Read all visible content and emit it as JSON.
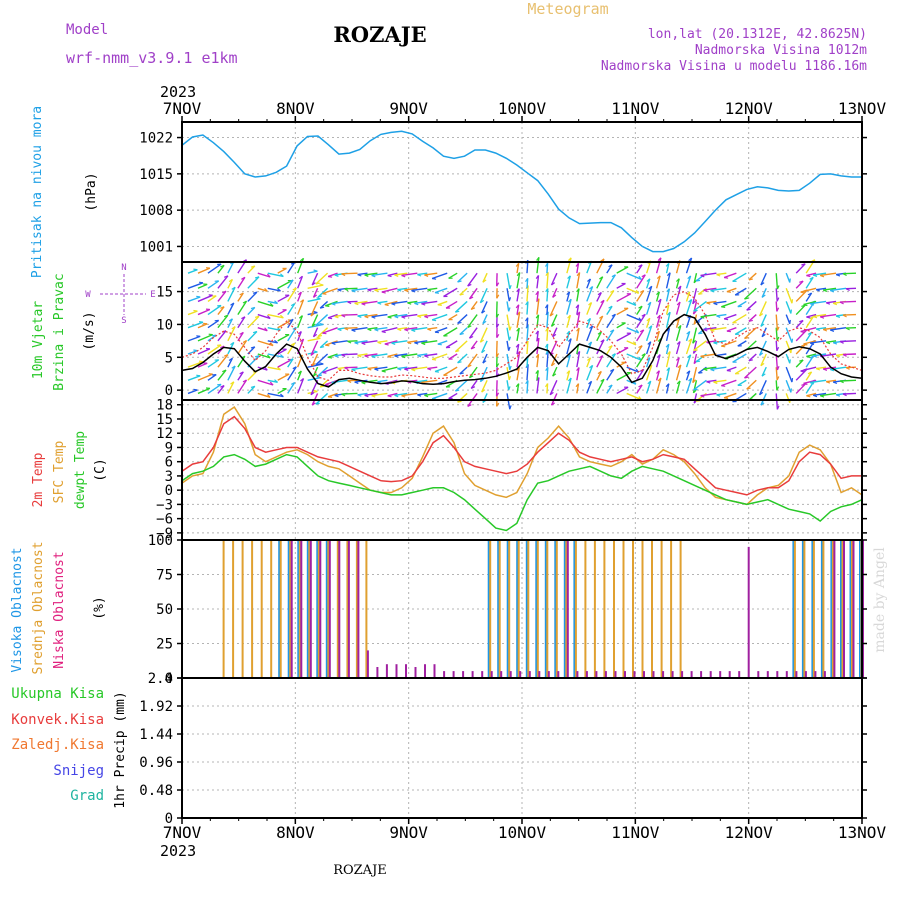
{
  "header": {
    "model_label": "Model",
    "model_name": "wrf-nmm_v3.9.1 e1km",
    "station": "ROZAJE",
    "meteogram": "Meteogram",
    "lonlat": "lon,lat (20.1312E, 42.8625N)",
    "altitude": "Nadmorska Visina 1012m",
    "model_altitude": "Nadmorska Visina u modelu 1186.16m",
    "year": "2023",
    "footer_station": "ROZAJE",
    "credit": "made by Angel"
  },
  "colors": {
    "pressure": "#1ea0e6",
    "temp2m": "#e83c3c",
    "sfc": "#e0a030",
    "dewpt": "#28c828",
    "high_cloud": "#1e96e6",
    "mid_cloud": "#e0a030",
    "low_cloud": "#a020a0",
    "total_precip": "#28c828",
    "convective": "#e83c3c",
    "frozen": "#f07830",
    "snow": "#4646e6",
    "graupel": "#20b4a0",
    "wind_speed": "#000000",
    "gust": "#e83c3c"
  },
  "axis_labels": {
    "pressure": [
      "Pritisak na nivou mora",
      "(hPa)"
    ],
    "wind": [
      "10m Vjetar",
      "Brzina i Pravac",
      "(m/s)"
    ],
    "compass": [
      "N",
      "W",
      "E",
      "S"
    ],
    "temp": [
      "2m Temp",
      "SFC Temp",
      "dewpt Temp",
      "(C)"
    ],
    "cloud": [
      "Visoka Oblacnost",
      "Srednja Oblacnost",
      "Niska Oblacnost",
      "(%)"
    ],
    "precip_legend": [
      "Ukupna Kisa",
      "Konvek.Kisa",
      "Zaledj.Kisa",
      "Snijeg",
      "Grad"
    ],
    "precip_unit": "1hr Precip (mm)"
  },
  "chart_data": [
    {
      "type": "line",
      "panel": "pressure",
      "x_ticks": [
        "7NOV",
        "8NOV",
        "9NOV",
        "10NOV",
        "11NOV",
        "12NOV",
        "13NOV"
      ],
      "y_ticks": [
        "1022",
        "1015",
        "1008",
        "1001"
      ],
      "ylim": [
        998,
        1025
      ],
      "series": [
        {
          "values": [
            1020.5,
            1022.1,
            1022.5,
            1021.0,
            1019.3,
            1017.2,
            1015.0,
            1014.4,
            1014.6,
            1015.3,
            1016.5,
            1020.4,
            1022.2,
            1022.3,
            1020.6,
            1018.8,
            1019.0,
            1019.7,
            1021.4,
            1022.6,
            1023.0,
            1023.2,
            1022.7,
            1021.3,
            1020.0,
            1018.4,
            1018.0,
            1018.4,
            1019.6,
            1019.6,
            1019.0,
            1018.0,
            1016.7,
            1015.2,
            1013.7,
            1011.1,
            1008.2,
            1006.5,
            1005.4,
            1005.5,
            1005.6,
            1005.6,
            1004.6,
            1002.7,
            1001.0,
            1000.0,
            1000.0,
            1000.6,
            1001.9,
            1003.6,
            1005.8,
            1008.0,
            1010.0,
            1011.0,
            1012.0,
            1012.5,
            1012.3,
            1011.8,
            1011.7,
            1011.8,
            1013.2,
            1014.9,
            1015.0,
            1014.6,
            1014.4,
            1014.4
          ]
        }
      ]
    },
    {
      "type": "line",
      "panel": "wind",
      "y_ticks": [
        "15",
        "10",
        "5",
        "0"
      ],
      "ylim": [
        -1.5,
        19.5
      ],
      "series": [
        {
          "values": [
            3.0,
            3.3,
            4.2,
            5.5,
            6.5,
            6.3,
            4.4,
            2.8,
            3.6,
            5.5,
            7.0,
            6.3,
            3.2,
            1.0,
            0.5,
            1.6,
            1.8,
            1.5,
            1.2,
            1.0,
            1.1,
            1.4,
            1.3,
            1.0,
            0.9,
            1.0,
            1.3,
            1.5,
            1.6,
            1.8,
            2.1,
            2.6,
            3.2,
            5.0,
            6.5,
            6.0,
            4.0,
            5.5,
            7.0,
            6.5,
            6.0,
            5.0,
            3.5,
            1.2,
            1.8,
            4.5,
            8.5,
            10.5,
            11.5,
            11.0,
            8.5,
            5.3,
            4.8,
            5.4,
            6.2,
            6.5,
            5.9,
            5.1,
            6.2,
            6.6,
            6.3,
            5.5,
            3.5,
            2.5,
            2.0,
            1.8
          ]
        },
        {
          "values": [
            5.0,
            5.5,
            6.5,
            8.0,
            9.0,
            8.5,
            6.5,
            4.5,
            6.0,
            8.5,
            10.5,
            9.0,
            5.0,
            2.0,
            1.5,
            3.0,
            3.0,
            2.5,
            2.2,
            2.0,
            2.0,
            2.3,
            2.2,
            2.0,
            1.8,
            1.8,
            2.0,
            2.2,
            2.4,
            2.6,
            3.0,
            4.0,
            5.0,
            7.5,
            10.0,
            9.5,
            6.5,
            8.5,
            10.5,
            10.0,
            9.0,
            7.5,
            5.5,
            2.5,
            3.0,
            6.5,
            12.0,
            14.5,
            15.0,
            14.0,
            11.5,
            7.5,
            7.0,
            8.0,
            9.0,
            9.5,
            8.5,
            7.5,
            9.0,
            9.5,
            9.0,
            8.0,
            5.5,
            4.0,
            3.5,
            3.0
          ]
        }
      ]
    },
    {
      "type": "line",
      "panel": "temperature",
      "y_ticks": [
        "18",
        "15",
        "12",
        "9",
        "6",
        "3",
        "0",
        "−3",
        "−6",
        "−9"
      ],
      "ylim": [
        -10.5,
        19
      ],
      "series": [
        {
          "values": [
            4.0,
            5.5,
            6.0,
            9.0,
            14.0,
            15.5,
            13.0,
            9.0,
            8.0,
            8.5,
            9.0,
            9.0,
            8.0,
            7.0,
            6.5,
            6.0,
            5.0,
            4.0,
            3.0,
            2.0,
            1.8,
            2.0,
            3.0,
            6.0,
            10.0,
            11.5,
            9.0,
            6.0,
            5.0,
            4.5,
            4.0,
            3.5,
            4.0,
            5.5,
            8.0,
            10.0,
            12.0,
            10.5,
            8.0,
            7.0,
            6.5,
            6.0,
            6.5,
            7.0,
            6.0,
            6.5,
            7.5,
            7.0,
            6.5,
            4.5,
            2.5,
            0.5,
            0.0,
            -0.5,
            -1.0,
            0.0,
            0.5,
            0.5,
            2.0,
            6.0,
            8.0,
            7.5,
            5.5,
            2.5,
            3.0,
            3.0
          ]
        },
        {
          "values": [
            1.5,
            3.0,
            3.5,
            8.0,
            16.0,
            17.5,
            14.0,
            7.5,
            6.0,
            7.0,
            8.0,
            8.5,
            7.5,
            6.0,
            5.0,
            4.5,
            3.0,
            1.5,
            0.0,
            -0.5,
            -0.5,
            0.5,
            2.5,
            7.0,
            12.0,
            13.5,
            10.0,
            3.5,
            1.0,
            0.0,
            -1.0,
            -1.5,
            -0.5,
            3.5,
            9.0,
            11.0,
            13.5,
            11.0,
            7.0,
            6.0,
            5.5,
            5.0,
            6.0,
            7.5,
            5.5,
            6.5,
            8.5,
            7.5,
            6.0,
            3.5,
            0.5,
            -1.5,
            -2.0,
            -2.5,
            -3.0,
            -1.0,
            0.5,
            1.0,
            3.0,
            8.0,
            9.5,
            8.5,
            5.5,
            -0.5,
            0.5,
            -1.0
          ]
        },
        {
          "values": [
            2.0,
            3.5,
            4.0,
            5.0,
            7.0,
            7.5,
            6.5,
            5.0,
            5.5,
            6.5,
            7.5,
            7.0,
            5.0,
            3.0,
            2.0,
            1.5,
            1.0,
            0.5,
            0.0,
            -0.5,
            -1.0,
            -1.0,
            -0.5,
            0.0,
            0.5,
            0.5,
            -0.5,
            -2.0,
            -4.0,
            -6.0,
            -8.0,
            -8.5,
            -7.0,
            -2.0,
            1.5,
            2.0,
            3.0,
            4.0,
            4.5,
            5.0,
            4.0,
            3.0,
            2.5,
            4.0,
            5.0,
            4.5,
            4.0,
            3.0,
            2.0,
            1.0,
            0.0,
            -1.0,
            -2.0,
            -2.5,
            -3.0,
            -2.5,
            -2.0,
            -3.0,
            -4.0,
            -4.5,
            -5.0,
            -6.5,
            -4.5,
            -3.5,
            -3.0,
            -2.0
          ]
        }
      ]
    },
    {
      "type": "bar",
      "panel": "cloud",
      "y_ticks": [
        "100",
        "75",
        "50",
        "25",
        "0"
      ],
      "ylim": [
        0,
        100
      ],
      "series": [
        {
          "values": [
            0,
            0,
            0,
            0,
            0,
            0,
            0,
            0,
            0,
            0,
            100,
            100,
            100,
            100,
            100,
            100,
            0,
            0,
            0,
            0,
            0,
            0,
            0,
            0,
            0,
            0,
            0,
            0,
            0,
            0,
            0,
            0,
            100,
            100,
            100,
            100,
            100,
            100,
            100,
            100,
            100,
            100,
            0,
            0,
            0,
            0,
            0,
            0,
            0,
            0,
            0,
            0,
            0,
            0,
            0,
            0,
            0,
            0,
            0,
            0,
            0,
            0,
            0,
            0,
            100,
            100,
            100,
            100,
            100,
            100,
            100,
            100
          ]
        },
        {
          "values": [
            0,
            0,
            0,
            0,
            100,
            100,
            100,
            100,
            100,
            100,
            100,
            100,
            100,
            100,
            100,
            100,
            100,
            100,
            100,
            100,
            0,
            0,
            0,
            0,
            0,
            0,
            0,
            0,
            0,
            0,
            0,
            0,
            100,
            100,
            100,
            100,
            100,
            100,
            100,
            100,
            100,
            100,
            100,
            100,
            100,
            100,
            100,
            100,
            100,
            100,
            100,
            100,
            100,
            0,
            0,
            0,
            0,
            0,
            0,
            0,
            0,
            0,
            0,
            0,
            100,
            100,
            100,
            100,
            100,
            100,
            100,
            100
          ]
        },
        {
          "values": [
            0,
            0,
            0,
            0,
            0,
            0,
            0,
            0,
            0,
            0,
            0,
            100,
            100,
            100,
            100,
            100,
            100,
            100,
            100,
            20,
            8,
            10,
            10,
            10,
            8,
            10,
            10,
            5,
            5,
            5,
            5,
            5,
            5,
            5,
            5,
            5,
            5,
            5,
            5,
            5,
            100,
            5,
            5,
            5,
            5,
            5,
            5,
            5,
            5,
            5,
            5,
            5,
            5,
            5,
            5,
            5,
            5,
            5,
            5,
            95,
            5,
            5,
            5,
            5,
            5,
            5,
            5,
            5,
            100,
            100,
            100,
            100
          ]
        }
      ]
    },
    {
      "type": "bar",
      "panel": "precip",
      "y_ticks": [
        "2.4",
        "1.92",
        "1.44",
        "0.96",
        "0.48",
        "0"
      ],
      "ylim": [
        0,
        2.4
      ],
      "series": [
        {
          "values": [
            0,
            0,
            0,
            0,
            0,
            0,
            0,
            0,
            0,
            0,
            0,
            0,
            0,
            0,
            0,
            0,
            0,
            0,
            0,
            0,
            0,
            0,
            0,
            0,
            0,
            0,
            0,
            0,
            0,
            0,
            0,
            0,
            0,
            0,
            0,
            0,
            0,
            0,
            0,
            0,
            0,
            0,
            0,
            0,
            0,
            0,
            0,
            0,
            0,
            0,
            0,
            0,
            0,
            0,
            0,
            0,
            0,
            0,
            0,
            0,
            0,
            0,
            0,
            0,
            0,
            0,
            0,
            0,
            0,
            0,
            0,
            0,
            0,
            0,
            0,
            0,
            0,
            0,
            0,
            0,
            0,
            0,
            0,
            0,
            0,
            0,
            0,
            0,
            0,
            0,
            0,
            0,
            0,
            0,
            0,
            0,
            0,
            0,
            0,
            0,
            0,
            0,
            0,
            0,
            0,
            0,
            0,
            0,
            0,
            0,
            0,
            0,
            0,
            0,
            0,
            0,
            0,
            0,
            0,
            0,
            0,
            0,
            0,
            0,
            0,
            0,
            0,
            0,
            0,
            0,
            0,
            0,
            0,
            0,
            0,
            0,
            0,
            0,
            0,
            0,
            0,
            0,
            0,
            0
          ]
        }
      ]
    }
  ]
}
